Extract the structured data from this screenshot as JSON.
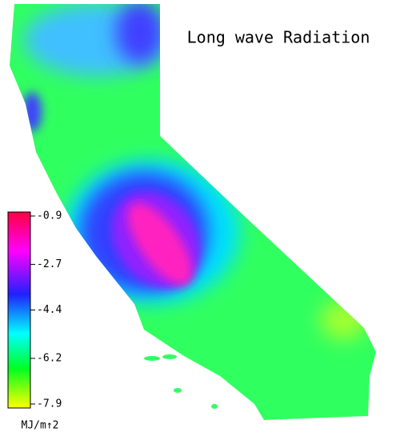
{
  "title": "Long wave Radiation",
  "colorbar": {
    "range": [
      -0.9,
      -7.9
    ],
    "ticks": [
      -0.9,
      -2.7,
      -4.4,
      -6.2,
      -7.9
    ],
    "unit": "MJ/m↑2"
  }
}
